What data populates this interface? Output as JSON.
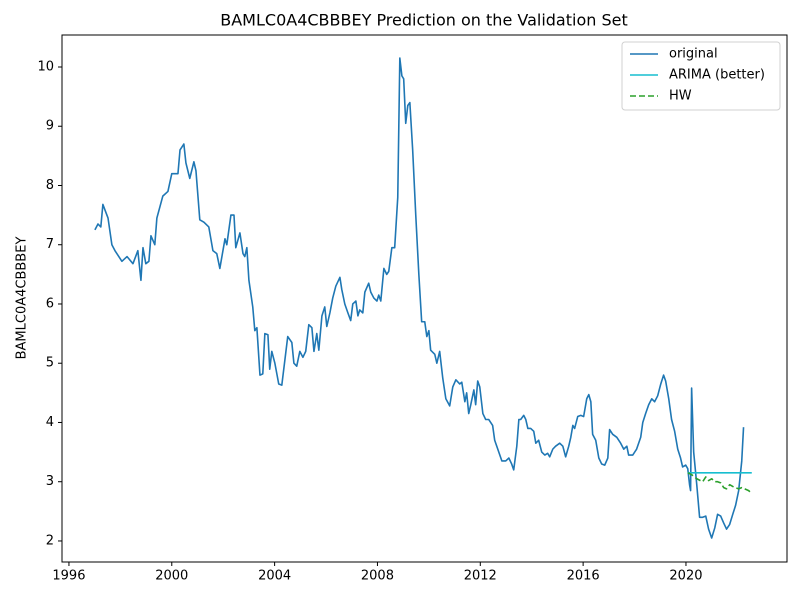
{
  "chart_data": {
    "type": "line",
    "title": "BAMLC0A4CBBBEY Prediction on the Validation Set",
    "y_label": "BAMLC0A4CBBBEY",
    "xlim": [
      1995.73,
      2023.93
    ],
    "ylim": [
      1.645,
      10.54
    ],
    "xticks": [
      1996,
      2000,
      2004,
      2008,
      2012,
      2016,
      2020
    ],
    "yticks": [
      2,
      3,
      4,
      5,
      6,
      7,
      8,
      9,
      10
    ],
    "grid": false,
    "legend": "upper right",
    "series": [
      {
        "name": "original",
        "color": "#1f77b4",
        "style": "solid",
        "x": [
          1997.01,
          1997.13,
          1997.24,
          1997.32,
          1997.52,
          1997.67,
          1997.79,
          1998.06,
          1998.26,
          1998.49,
          1998.68,
          1998.8,
          1998.88,
          1998.99,
          1999.11,
          1999.19,
          1999.34,
          1999.42,
          1999.65,
          1999.85,
          2000.0,
          2000.24,
          2000.32,
          2000.47,
          2000.55,
          2000.7,
          2000.86,
          2000.94,
          2001.09,
          2001.25,
          2001.44,
          2001.6,
          2001.75,
          2001.87,
          2002.07,
          2002.14,
          2002.3,
          2002.42,
          2002.49,
          2002.65,
          2002.77,
          2002.84,
          2002.92,
          2003.0,
          2003.15,
          2003.23,
          2003.31,
          2003.43,
          2003.54,
          2003.62,
          2003.74,
          2003.81,
          2003.89,
          2004.01,
          2004.16,
          2004.28,
          2004.44,
          2004.51,
          2004.67,
          2004.75,
          2004.86,
          2004.98,
          2005.1,
          2005.21,
          2005.33,
          2005.45,
          2005.53,
          2005.64,
          2005.72,
          2005.84,
          2005.95,
          2006.03,
          2006.15,
          2006.26,
          2006.38,
          2006.54,
          2006.61,
          2006.73,
          2006.85,
          2006.96,
          2007.04,
          2007.16,
          2007.24,
          2007.31,
          2007.43,
          2007.51,
          2007.66,
          2007.74,
          2007.86,
          2007.98,
          2008.05,
          2008.13,
          2008.25,
          2008.36,
          2008.44,
          2008.56,
          2008.67,
          2008.79,
          2008.87,
          2008.95,
          2009.02,
          2009.1,
          2009.18,
          2009.26,
          2009.37,
          2009.49,
          2009.61,
          2009.72,
          2009.84,
          2009.92,
          2010.0,
          2010.07,
          2010.23,
          2010.31,
          2010.42,
          2010.54,
          2010.66,
          2010.81,
          2010.93,
          2011.05,
          2011.2,
          2011.28,
          2011.4,
          2011.47,
          2011.55,
          2011.63,
          2011.75,
          2011.82,
          2011.9,
          2011.98,
          2012.1,
          2012.21,
          2012.33,
          2012.48,
          2012.56,
          2012.68,
          2012.84,
          2012.99,
          2013.11,
          2013.22,
          2013.3,
          2013.42,
          2013.5,
          2013.57,
          2013.69,
          2013.77,
          2013.85,
          2013.96,
          2014.08,
          2014.16,
          2014.27,
          2014.39,
          2014.51,
          2014.62,
          2014.7,
          2014.82,
          2014.93,
          2015.09,
          2015.21,
          2015.32,
          2015.44,
          2015.52,
          2015.6,
          2015.67,
          2015.79,
          2015.91,
          2016.02,
          2016.14,
          2016.22,
          2016.3,
          2016.37,
          2016.49,
          2016.61,
          2016.72,
          2016.84,
          2016.96,
          2017.03,
          2017.15,
          2017.31,
          2017.46,
          2017.58,
          2017.7,
          2017.77,
          2017.93,
          2018.08,
          2018.24,
          2018.32,
          2018.43,
          2018.55,
          2018.67,
          2018.78,
          2018.9,
          2019.02,
          2019.13,
          2019.21,
          2019.33,
          2019.44,
          2019.56,
          2019.68,
          2019.79,
          2019.87,
          2019.99,
          2020.07,
          2020.14,
          2020.18,
          2020.22,
          2020.3,
          2020.42,
          2020.53,
          2020.65,
          2020.77,
          2020.88,
          2021.0,
          2021.12,
          2021.23,
          2021.35,
          2021.47,
          2021.58,
          2021.7,
          2021.82,
          2021.93,
          2022.05,
          2022.17,
          2022.24
        ],
        "values": [
          7.25,
          7.35,
          7.3,
          7.68,
          7.45,
          7.0,
          6.9,
          6.72,
          6.8,
          6.68,
          6.9,
          6.4,
          6.95,
          6.68,
          6.72,
          7.15,
          7.0,
          7.45,
          7.82,
          7.9,
          8.2,
          8.2,
          8.6,
          8.7,
          8.38,
          8.12,
          8.4,
          8.25,
          7.42,
          7.38,
          7.3,
          6.9,
          6.85,
          6.6,
          7.1,
          7.0,
          7.5,
          7.5,
          6.95,
          7.2,
          6.85,
          6.8,
          6.95,
          6.4,
          5.95,
          5.55,
          5.6,
          4.8,
          4.82,
          5.5,
          5.48,
          4.9,
          5.2,
          5.0,
          4.65,
          4.63,
          5.2,
          5.45,
          5.35,
          5.0,
          4.95,
          5.2,
          5.1,
          5.2,
          5.65,
          5.6,
          5.2,
          5.5,
          5.22,
          5.8,
          5.95,
          5.62,
          5.85,
          6.1,
          6.3,
          6.45,
          6.25,
          6.0,
          5.85,
          5.72,
          6.0,
          6.05,
          5.8,
          5.9,
          5.85,
          6.2,
          6.35,
          6.2,
          6.1,
          6.05,
          6.15,
          6.05,
          6.6,
          6.5,
          6.55,
          6.95,
          6.95,
          7.8,
          10.15,
          9.85,
          9.8,
          9.05,
          9.35,
          9.4,
          8.6,
          7.5,
          6.5,
          5.7,
          5.7,
          5.45,
          5.55,
          5.22,
          5.15,
          5.0,
          5.2,
          4.75,
          4.4,
          4.28,
          4.6,
          4.72,
          4.65,
          4.68,
          4.35,
          4.5,
          4.15,
          4.3,
          4.55,
          4.3,
          4.7,
          4.6,
          4.15,
          4.05,
          4.05,
          3.95,
          3.7,
          3.55,
          3.35,
          3.35,
          3.4,
          3.3,
          3.2,
          3.6,
          4.05,
          4.05,
          4.12,
          4.05,
          3.9,
          3.9,
          3.85,
          3.65,
          3.7,
          3.5,
          3.45,
          3.48,
          3.42,
          3.55,
          3.6,
          3.65,
          3.6,
          3.42,
          3.6,
          3.75,
          3.95,
          3.9,
          4.1,
          4.12,
          4.1,
          4.4,
          4.47,
          4.35,
          3.8,
          3.7,
          3.4,
          3.3,
          3.28,
          3.4,
          3.88,
          3.8,
          3.75,
          3.65,
          3.55,
          3.6,
          3.45,
          3.45,
          3.55,
          3.75,
          4.0,
          4.15,
          4.3,
          4.4,
          4.35,
          4.45,
          4.65,
          4.8,
          4.7,
          4.4,
          4.05,
          3.85,
          3.55,
          3.4,
          3.25,
          3.28,
          3.22,
          2.95,
          2.85,
          4.58,
          3.5,
          2.95,
          2.4,
          2.4,
          2.42,
          2.2,
          2.05,
          2.22,
          2.45,
          2.42,
          2.3,
          2.2,
          2.28,
          2.45,
          2.6,
          2.85,
          3.35,
          3.92
        ]
      },
      {
        "name": "ARIMA (better)",
        "color": "#17becf",
        "style": "solid",
        "x": [
          2020.07,
          2022.56
        ],
        "values": [
          3.15,
          3.15
        ]
      },
      {
        "name": "HW",
        "color": "#2ca02c",
        "style": "dashed",
        "x": [
          2020.07,
          2020.22,
          2020.42,
          2020.65,
          2020.77,
          2020.88,
          2021.0,
          2021.12,
          2021.23,
          2021.35,
          2021.47,
          2021.58,
          2021.7,
          2021.82,
          2021.93,
          2022.05,
          2022.17,
          2022.28,
          2022.44,
          2022.56
        ],
        "values": [
          3.15,
          3.12,
          3.05,
          3.0,
          3.08,
          3.02,
          3.05,
          3.0,
          3.0,
          2.98,
          2.9,
          2.88,
          2.95,
          2.92,
          2.9,
          2.88,
          2.9,
          2.88,
          2.85,
          2.8
        ]
      }
    ]
  }
}
